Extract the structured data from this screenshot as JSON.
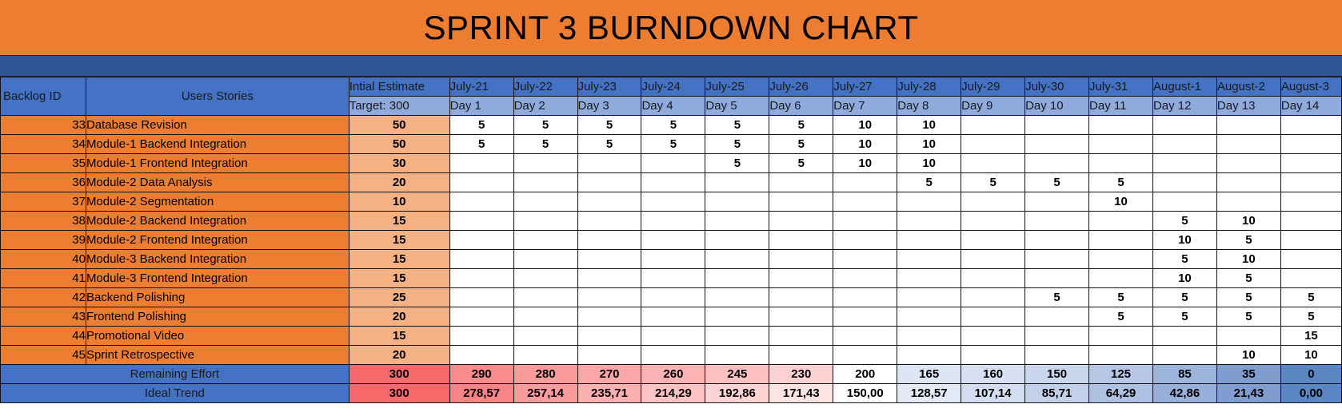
{
  "title": "SPRINT 3 BURNDOWN CHART",
  "headers": {
    "backlog_id": "Backlog ID",
    "user_stories": "Users Stories",
    "initial_estimate": "Intial Estimate",
    "target": "Target: 300"
  },
  "dates": [
    "July-21",
    "July-22",
    "July-23",
    "July-24",
    "July-25",
    "July-26",
    "July-27",
    "July-28",
    "July-29",
    "July-30",
    "July-31",
    "August-1",
    "August-2",
    "August-3"
  ],
  "days": [
    "Day 1",
    "Day 2",
    "Day 3",
    "Day 4",
    "Day 5",
    "Day 6",
    "Day 7",
    "Day 8",
    "Day 9",
    "Day 10",
    "Day 11",
    "Day 12",
    "Day 13",
    "Day 14"
  ],
  "rows": [
    {
      "id": "33",
      "story": "Database Revision",
      "estimate": "50",
      "values": [
        "5",
        "5",
        "5",
        "5",
        "5",
        "5",
        "10",
        "10",
        "",
        "",
        "",
        "",
        "",
        ""
      ]
    },
    {
      "id": "34",
      "story": "Module-1 Backend Integration",
      "estimate": "50",
      "values": [
        "5",
        "5",
        "5",
        "5",
        "5",
        "5",
        "10",
        "10",
        "",
        "",
        "",
        "",
        "",
        ""
      ]
    },
    {
      "id": "35",
      "story": "Module-1 Frontend Integration",
      "estimate": "30",
      "values": [
        "",
        "",
        "",
        "",
        "5",
        "5",
        "10",
        "10",
        "",
        "",
        "",
        "",
        "",
        ""
      ]
    },
    {
      "id": "36",
      "story": "Module-2 Data Analysis",
      "estimate": "20",
      "values": [
        "",
        "",
        "",
        "",
        "",
        "",
        "",
        "5",
        "5",
        "5",
        "5",
        "",
        "",
        ""
      ]
    },
    {
      "id": "37",
      "story": "Module-2 Segmentation",
      "estimate": "10",
      "values": [
        "",
        "",
        "",
        "",
        "",
        "",
        "",
        "",
        "",
        "",
        "10",
        "",
        "",
        ""
      ]
    },
    {
      "id": "38",
      "story": "Module-2 Backend Integration",
      "estimate": "15",
      "values": [
        "",
        "",
        "",
        "",
        "",
        "",
        "",
        "",
        "",
        "",
        "",
        "5",
        "10",
        ""
      ]
    },
    {
      "id": "39",
      "story": "Module-2 Frontend Integration",
      "estimate": "15",
      "values": [
        "",
        "",
        "",
        "",
        "",
        "",
        "",
        "",
        "",
        "",
        "",
        "10",
        "5",
        ""
      ]
    },
    {
      "id": "40",
      "story": "Module-3 Backend Integration",
      "estimate": "15",
      "values": [
        "",
        "",
        "",
        "",
        "",
        "",
        "",
        "",
        "",
        "",
        "",
        "5",
        "10",
        ""
      ]
    },
    {
      "id": "41",
      "story": "Module-3 Frontend Integration",
      "estimate": "15",
      "values": [
        "",
        "",
        "",
        "",
        "",
        "",
        "",
        "",
        "",
        "",
        "",
        "10",
        "5",
        ""
      ]
    },
    {
      "id": "42",
      "story": "Backend Polishing",
      "estimate": "25",
      "values": [
        "",
        "",
        "",
        "",
        "",
        "",
        "",
        "",
        "",
        "5",
        "5",
        "5",
        "5",
        "5"
      ]
    },
    {
      "id": "43",
      "story": "Frontend Polishing",
      "estimate": "20",
      "values": [
        "",
        "",
        "",
        "",
        "",
        "",
        "",
        "",
        "",
        "",
        "5",
        "5",
        "5",
        "5"
      ]
    },
    {
      "id": "44",
      "story": "Promotional Video",
      "estimate": "15",
      "values": [
        "",
        "",
        "",
        "",
        "",
        "",
        "",
        "",
        "",
        "",
        "",
        "",
        "",
        "15"
      ]
    },
    {
      "id": "45",
      "story": "Sprint Retrospective",
      "estimate": "20",
      "values": [
        "",
        "",
        "",
        "",
        "",
        "",
        "",
        "",
        "",
        "",
        "",
        "",
        "10",
        "10"
      ]
    }
  ],
  "remaining": {
    "label": "Remaining Effort",
    "initial": "300",
    "values": [
      "290",
      "280",
      "270",
      "260",
      "245",
      "230",
      "200",
      "165",
      "160",
      "150",
      "125",
      "85",
      "35",
      "0"
    ],
    "initial_color": "#f8696b",
    "colors": [
      "#f98b8c",
      "#fa9b9c",
      "#fba6a7",
      "#fbb2b3",
      "#fcc0c1",
      "#fdd0d1",
      "#ffffff",
      "#dde6f4",
      "#d6e0f1",
      "#c9d6ec",
      "#b5c7e4",
      "#9cb3da",
      "#7f9dcf",
      "#5b86c4"
    ]
  },
  "ideal": {
    "label": "Ideal Trend",
    "initial": "300",
    "values": [
      "278,57",
      "257,14",
      "235,71",
      "214,29",
      "192,86",
      "171,43",
      "150,00",
      "128,57",
      "107,14",
      "85,71",
      "64,29",
      "42,86",
      "21,43",
      "0,00"
    ],
    "initial_color": "#f8696b",
    "colors": [
      "#f98486",
      "#fa9c9e",
      "#fbb1b2",
      "#fcc3c4",
      "#fdd3d4",
      "#fee3e3",
      "#ffffff",
      "#e3eaf6",
      "#d3ddf0",
      "#c2d0ea",
      "#aec1e2",
      "#98b0d9",
      "#7f9dcf",
      "#5b86c4"
    ]
  }
}
